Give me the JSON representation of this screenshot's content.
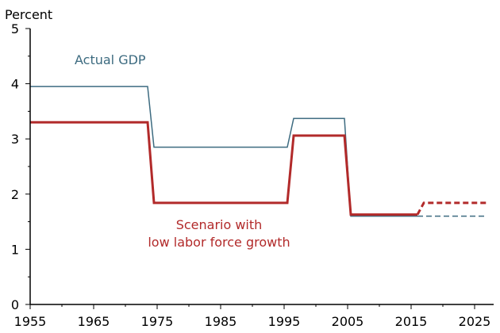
{
  "chart_data": {
    "type": "line",
    "ylabel": "Percent",
    "xlim": [
      1955,
      2028
    ],
    "ylim": [
      0,
      5
    ],
    "x_ticks": [
      1955,
      1965,
      1975,
      1985,
      1995,
      2005,
      2015,
      2025
    ],
    "y_ticks": [
      0,
      1,
      2,
      3,
      4,
      5
    ],
    "grid": false,
    "colors": {
      "actual": "#3d6b80",
      "scenario": "#b22a2a",
      "axis": "#000000"
    },
    "annotations": [
      {
        "id": "actual",
        "lines": [
          "Actual GDP"
        ]
      },
      {
        "id": "scenario",
        "lines": [
          "Scenario with",
          "low labor force growth"
        ]
      }
    ],
    "series": [
      {
        "name": "Actual GDP",
        "style": "solid",
        "points": [
          [
            1955,
            3.95
          ],
          [
            1973.5,
            3.95
          ],
          [
            1974.5,
            2.85
          ],
          [
            1995.5,
            2.85
          ],
          [
            1996.5,
            3.37
          ],
          [
            2004.5,
            3.37
          ],
          [
            2005.5,
            1.6
          ],
          [
            2016,
            1.6
          ]
        ]
      },
      {
        "name": "Actual GDP projection",
        "style": "dashed",
        "points": [
          [
            2016,
            1.6
          ],
          [
            2027,
            1.6
          ]
        ]
      },
      {
        "name": "Scenario with low labor force growth",
        "style": "solid",
        "points": [
          [
            1955,
            3.3
          ],
          [
            1973.5,
            3.3
          ],
          [
            1974.5,
            1.84
          ],
          [
            1995.5,
            1.84
          ],
          [
            1996.5,
            3.06
          ],
          [
            2004.5,
            3.06
          ],
          [
            2005.5,
            1.63
          ],
          [
            2016,
            1.63
          ]
        ]
      },
      {
        "name": "Scenario projection",
        "style": "dashed",
        "points": [
          [
            2016,
            1.63
          ],
          [
            2017,
            1.84
          ],
          [
            2027,
            1.84
          ]
        ]
      }
    ]
  }
}
